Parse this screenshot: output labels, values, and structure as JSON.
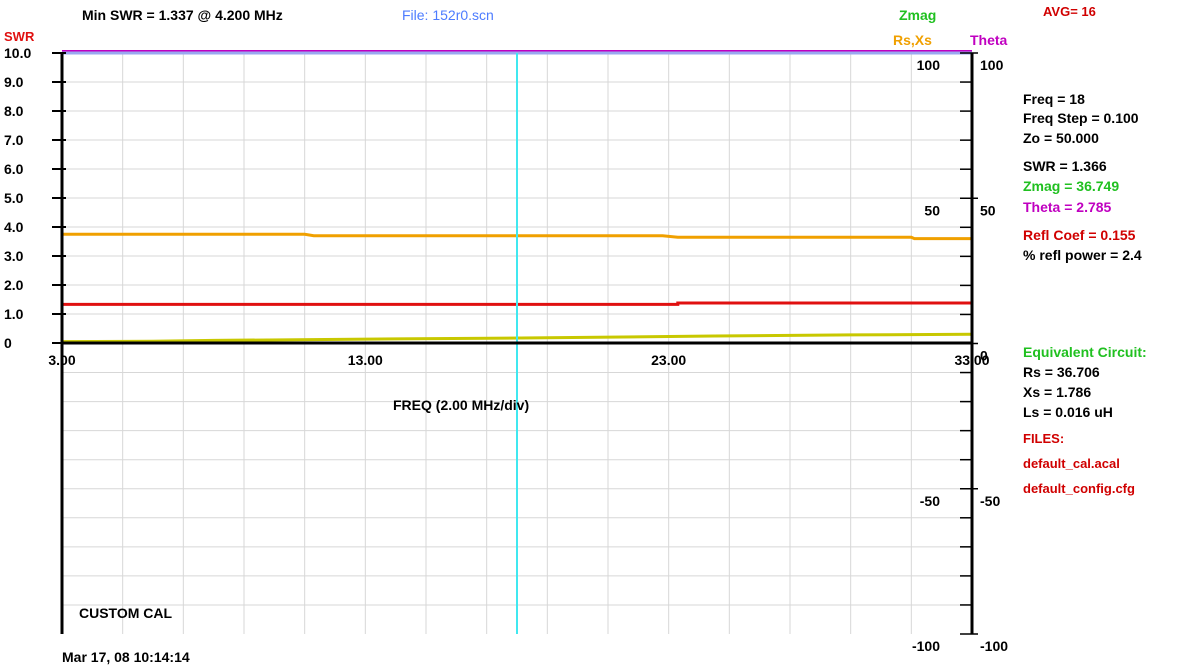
{
  "header": {
    "min_swr": "Min SWR =  1.337 @  4.200 MHz",
    "file": "File: 152r0.scn",
    "zmag_label": "Zmag",
    "avg": "AVG=  16",
    "rsxs_label": "Rs,Xs",
    "theta_label": "Theta",
    "swr_axis_label": "SWR"
  },
  "readout": {
    "freq": "Freq =  18",
    "freq_step": "Freq Step =  0.100",
    "zo": "Zo =   50.000",
    "swr": "SWR  =   1.366",
    "zmag": "Zmag =   36.749",
    "theta": "Theta =    2.785",
    "refl_coef": "Refl Coef   = 0.155",
    "refl_power": "% refl power =  2.4"
  },
  "equivalent_circuit": {
    "title": "Equivalent Circuit:",
    "rs": "Rs =   36.706",
    "xs": "Xs =     1.786",
    "ls": "Ls =     0.016  uH"
  },
  "files": {
    "title": "FILES:",
    "cal": "default_cal.acal",
    "config": "default_config.cfg"
  },
  "footer": {
    "cal_mode": "CUSTOM CAL",
    "timestamp": "Mar 17, 08  10:14:14"
  },
  "colors": {
    "swr": "#e01010",
    "rsxs": "#f0a000",
    "zmag": "#20c020",
    "theta": "#c000c0",
    "xs_trace": "#c8c800",
    "cursor": "#40e8f0",
    "top_line": "#9aa8f0",
    "file": "#4d7cff",
    "red_text": "#d00000"
  },
  "chart_data": {
    "type": "line",
    "xlabel": "FREQ (2.00 MHz/div)",
    "x_range": [
      3,
      33
    ],
    "x_ticks": [
      "3.00",
      "13.00",
      "23.00",
      "33.00"
    ],
    "swr_range": [
      0,
      10
    ],
    "swr_ticks": [
      "0",
      "1.0",
      "2.0",
      "3.0",
      "4.0",
      "5.0",
      "6.0",
      "7.0",
      "8.0",
      "9.0",
      "10.0"
    ],
    "right_range": [
      -100,
      100
    ],
    "right_ticks_inner": [
      "100",
      "50",
      "-50",
      "-100"
    ],
    "right_ticks_outer": [
      "100",
      "50",
      "0",
      "-50",
      "-100"
    ],
    "cursor_x": 18,
    "series": [
      {
        "name": "SWR",
        "axis": "swr",
        "color": "#e01010",
        "x": [
          3,
          23.3,
          23.3,
          33
        ],
        "y": [
          1.33,
          1.33,
          1.38,
          1.38
        ]
      },
      {
        "name": "Rs",
        "axis": "swr",
        "color": "#f0a000",
        "x": [
          3,
          11,
          11.3,
          22.8,
          23.3,
          31,
          31.1,
          33
        ],
        "y": [
          3.75,
          3.75,
          3.7,
          3.7,
          3.65,
          3.65,
          3.6,
          3.6
        ]
      },
      {
        "name": "Xs",
        "axis": "swr",
        "color": "#c8c800",
        "x": [
          3,
          6,
          8,
          14,
          19,
          24.5,
          29,
          33
        ],
        "y": [
          0.05,
          0.06,
          0.09,
          0.14,
          0.18,
          0.24,
          0.28,
          0.3
        ]
      },
      {
        "name": "Theta",
        "axis": "swr",
        "color": "#c000c0",
        "x": [
          3,
          33
        ],
        "y": [
          10.05,
          10.05
        ]
      },
      {
        "name": "Zmag",
        "axis": "swr",
        "color": "#9aa8f0",
        "x": [
          3,
          33
        ],
        "y": [
          10.0,
          10.0
        ]
      }
    ]
  }
}
